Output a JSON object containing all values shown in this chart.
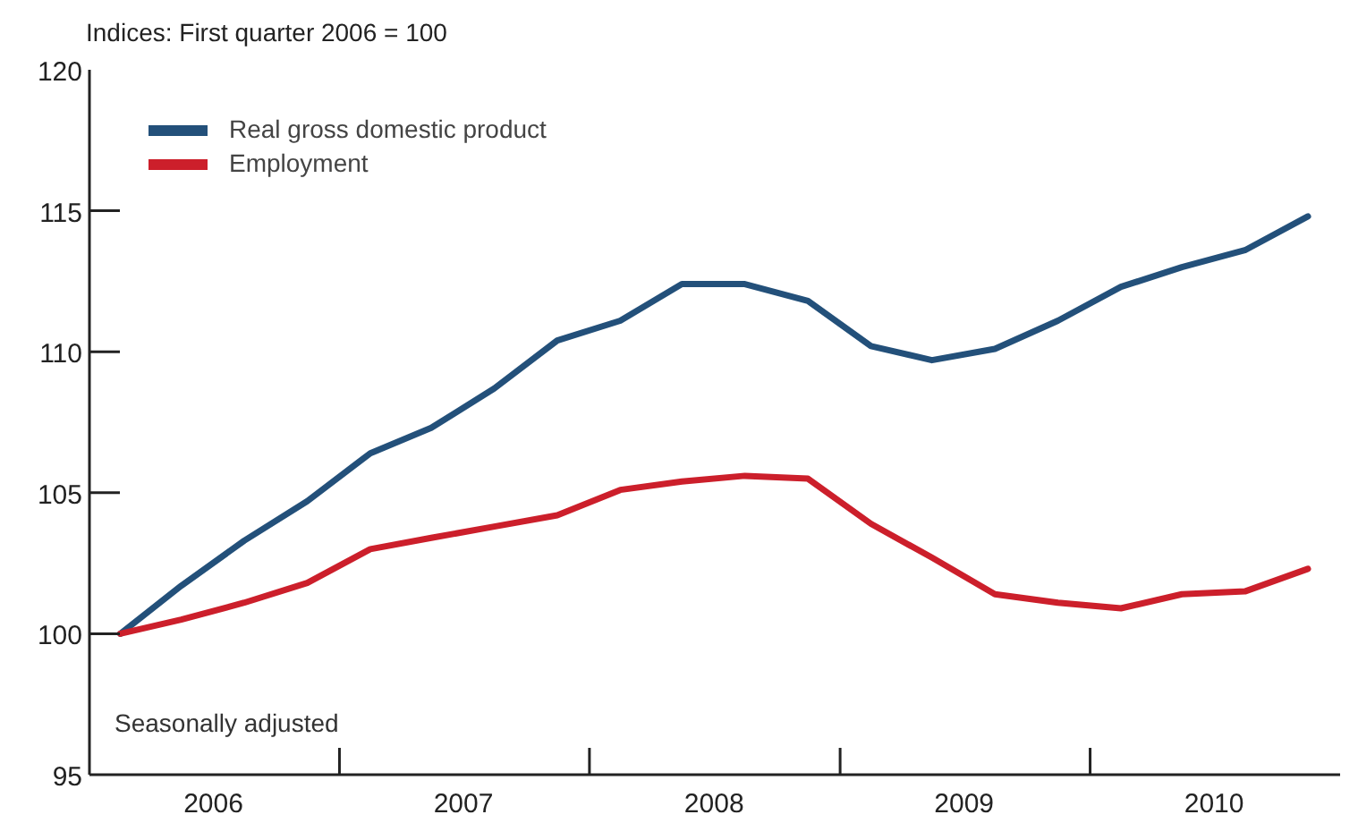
{
  "chart_data": {
    "type": "line",
    "ylabel": "Indices: First quarter 2006 = 100",
    "x": [
      "2006-02-15",
      "2006-05-15",
      "2006-08-15",
      "2006-11-15",
      "2007-02-15",
      "2007-05-15",
      "2007-08-15",
      "2007-11-15",
      "2008-02-15",
      "2008-05-15",
      "2008-08-15",
      "2008-11-15",
      "2009-02-15",
      "2009-05-15",
      "2009-08-15",
      "2009-11-15",
      "2010-02-15",
      "2010-05-15",
      "2010-08-15",
      "2010-11-15"
    ],
    "series": [
      {
        "name": "Real gross domestic product",
        "color": "#23507a",
        "values": [
          100,
          101.7,
          103.3,
          104.7,
          106.4,
          107.3,
          108.7,
          110.4,
          111.1,
          112.4,
          112.4,
          111.8,
          110.2,
          109.7,
          110.1,
          111.1,
          112.3,
          113.0,
          113.6,
          114.8
        ]
      },
      {
        "name": "Employment",
        "color": "#cc1f2b",
        "values": [
          100,
          100.5,
          101.1,
          101.8,
          103.0,
          103.4,
          103.8,
          104.2,
          105.1,
          105.4,
          105.6,
          105.5,
          103.9,
          102.7,
          101.4,
          101.1,
          100.9,
          101.4,
          101.5,
          102.3
        ]
      }
    ],
    "xlim": [
      "2006-01-01",
      "2011-01-01"
    ],
    "xticks": [
      {
        "value": "2006-07-01",
        "label": "2006"
      },
      {
        "value": "2007-01-01",
        "label": null
      },
      {
        "value": "2007-07-01",
        "label": "2007"
      },
      {
        "value": "2008-01-01",
        "label": null
      },
      {
        "value": "2008-07-01",
        "label": "2008"
      },
      {
        "value": "2009-01-01",
        "label": null
      },
      {
        "value": "2009-07-01",
        "label": "2009"
      },
      {
        "value": "2010-01-01",
        "label": null
      },
      {
        "value": "2010-07-01",
        "label": "2010"
      }
    ],
    "ylim": [
      95,
      120
    ],
    "yticks": [
      95,
      100,
      105,
      110,
      115,
      120
    ],
    "legend": "top left",
    "annotations": [
      "Seasonally adjusted"
    ]
  }
}
